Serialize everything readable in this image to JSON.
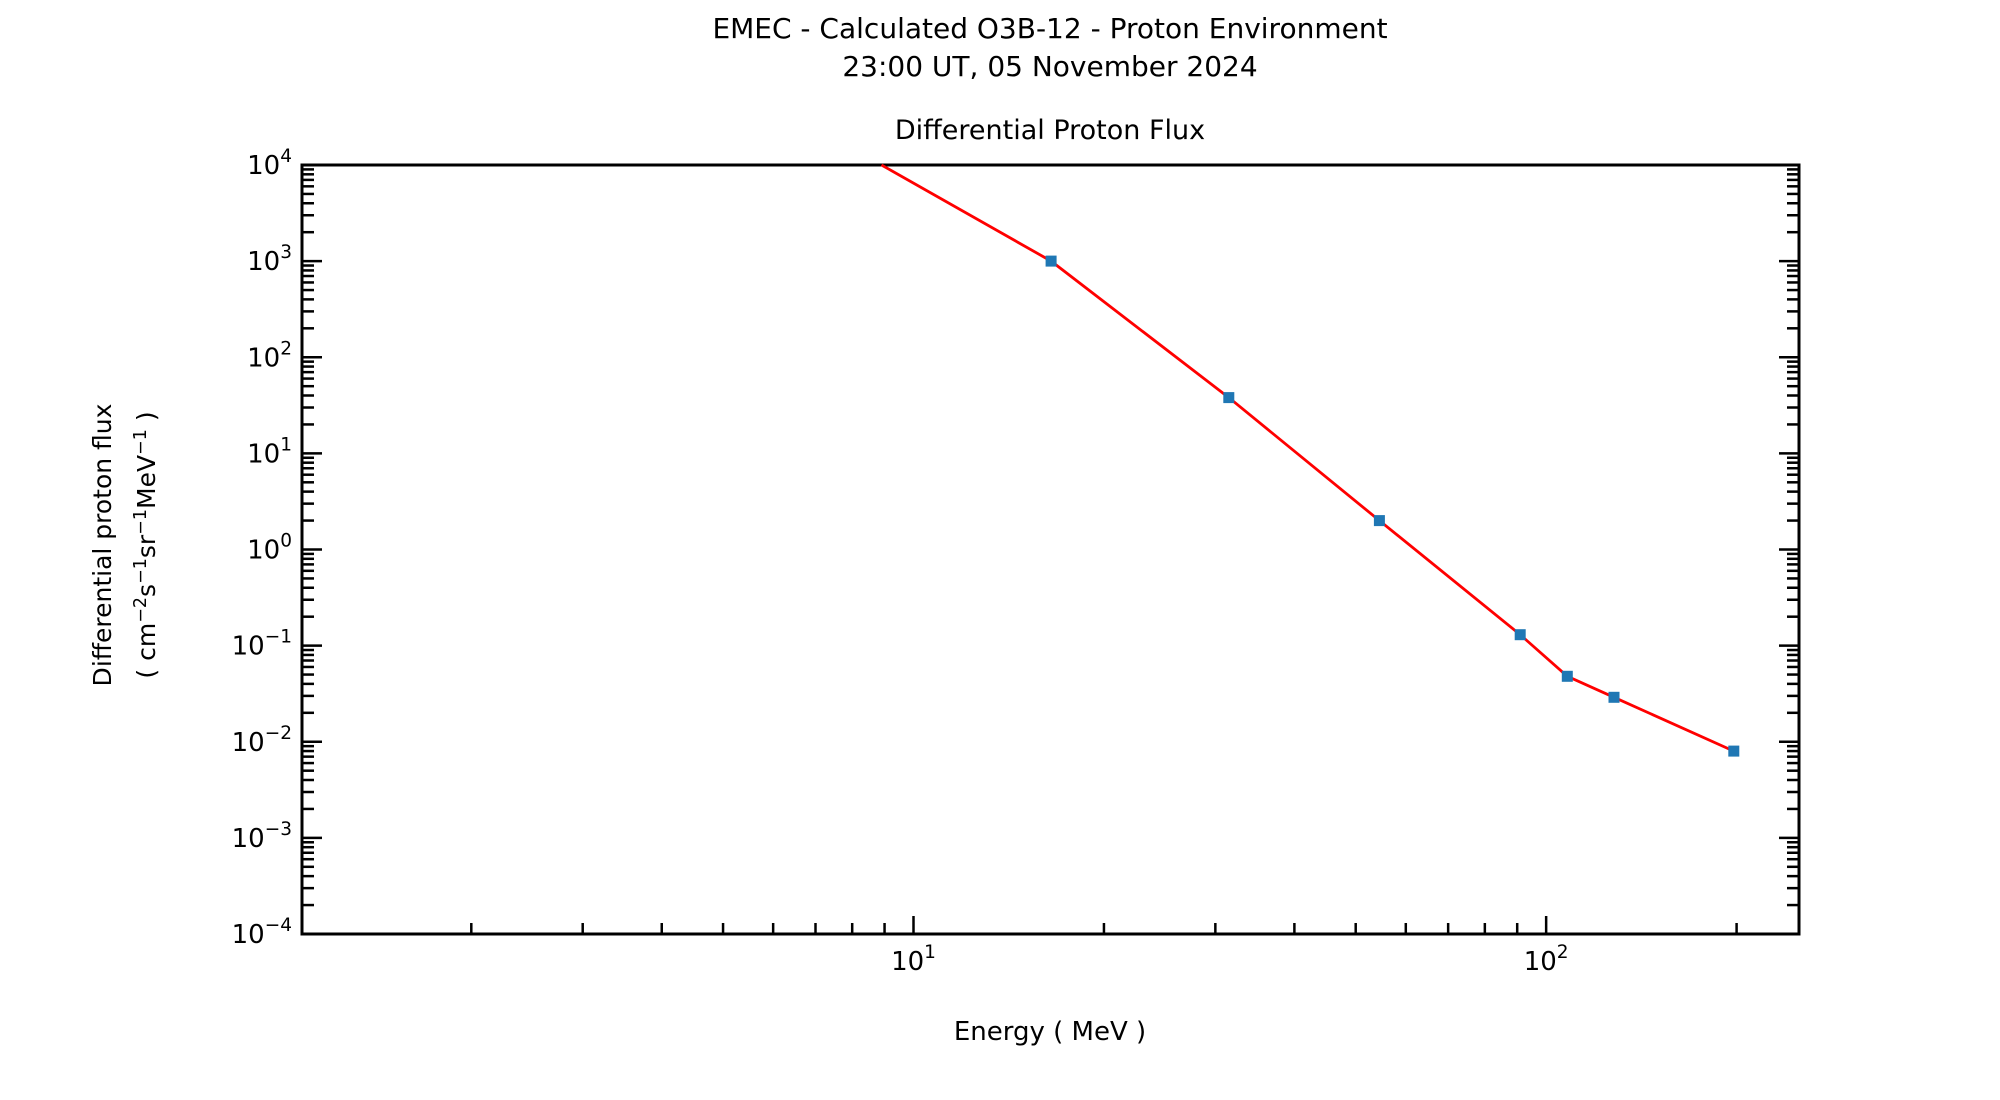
{
  "header": {
    "title_line1": "EMEC - Calculated O3B-12 - Proton Environment",
    "title_line2": "23:00 UT, 05 November 2024"
  },
  "chart_data": {
    "type": "line",
    "title": "Differential Proton Flux",
    "xlabel": "Energy ( MeV )",
    "ylabel_line1": "Differential proton flux",
    "ylabel_line2": "( cm⁻²s⁻¹sr⁻¹MeV⁻¹ )",
    "ylabel_unit_segments": [
      {
        "t": "( cm",
        "sup": false
      },
      {
        "t": "−2",
        "sup": true
      },
      {
        "t": "s",
        "sup": false
      },
      {
        "t": "−1",
        "sup": true
      },
      {
        "t": "sr",
        "sup": false
      },
      {
        "t": "−1",
        "sup": true
      },
      {
        "t": "MeV",
        "sup": false
      },
      {
        "t": "−1",
        "sup": true
      },
      {
        "t": " )",
        "sup": false
      }
    ],
    "xscale": "log",
    "yscale": "log",
    "xlim": [
      1.08,
      251
    ],
    "ylim": [
      0.0001,
      10000
    ],
    "x_major_tick_exponents": [
      1,
      2
    ],
    "y_major_tick_exponents": [
      4,
      3,
      2,
      1,
      0,
      -1,
      -2,
      -3,
      -4
    ],
    "grid": false,
    "legend_position": "none",
    "axes_color": "#000000",
    "series": [
      {
        "name": "differential proton flux",
        "line_color": "#ff0000",
        "marker": "square",
        "marker_color": "#1f77b4",
        "line_entry_point": {
          "energy": 8.9,
          "flux": 10000
        },
        "points": [
          {
            "energy": 16.5,
            "flux": 1000
          },
          {
            "energy": 31.5,
            "flux": 38
          },
          {
            "energy": 54.5,
            "flux": 2.0
          },
          {
            "energy": 91,
            "flux": 0.13
          },
          {
            "energy": 108,
            "flux": 0.048
          },
          {
            "energy": 128,
            "flux": 0.029
          },
          {
            "energy": 198,
            "flux": 0.008
          }
        ]
      }
    ]
  }
}
